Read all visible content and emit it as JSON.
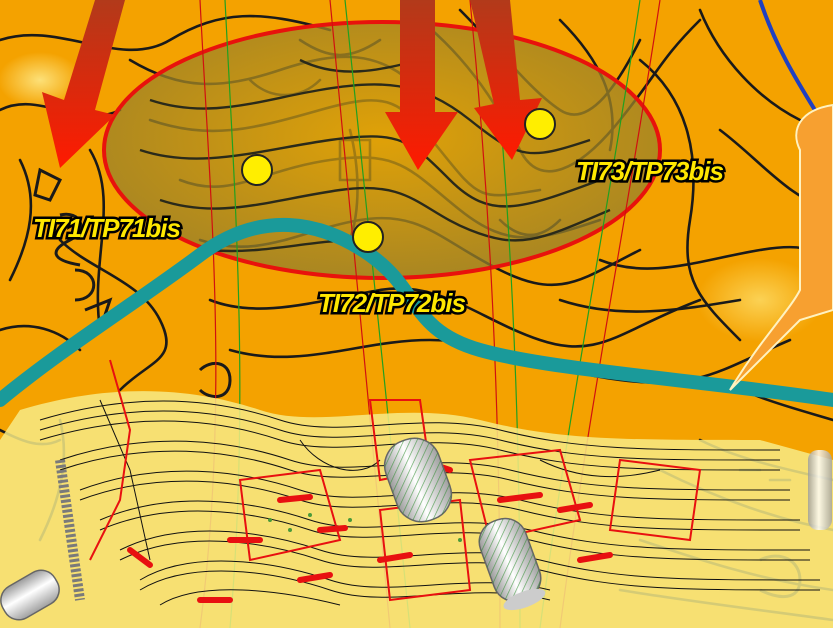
{
  "map": {
    "labels": {
      "ti71": "TI71/TP71bis",
      "ti72": "TI72/TP72bis",
      "ti73": "TI73/TP73bis"
    },
    "colors": {
      "background": "#f4a200",
      "zone_outline": "#e8120c",
      "zone_fill": "#9a8a30",
      "teal_line": "#1a9a9a",
      "arrow": "#e8140a",
      "point": "#ffee00",
      "contour": "#1a1a1a",
      "works_area": "#f7eb86"
    },
    "icons": [
      "arrow-down-icon",
      "survey-point-icon",
      "pipe-cylinder-icon"
    ]
  }
}
